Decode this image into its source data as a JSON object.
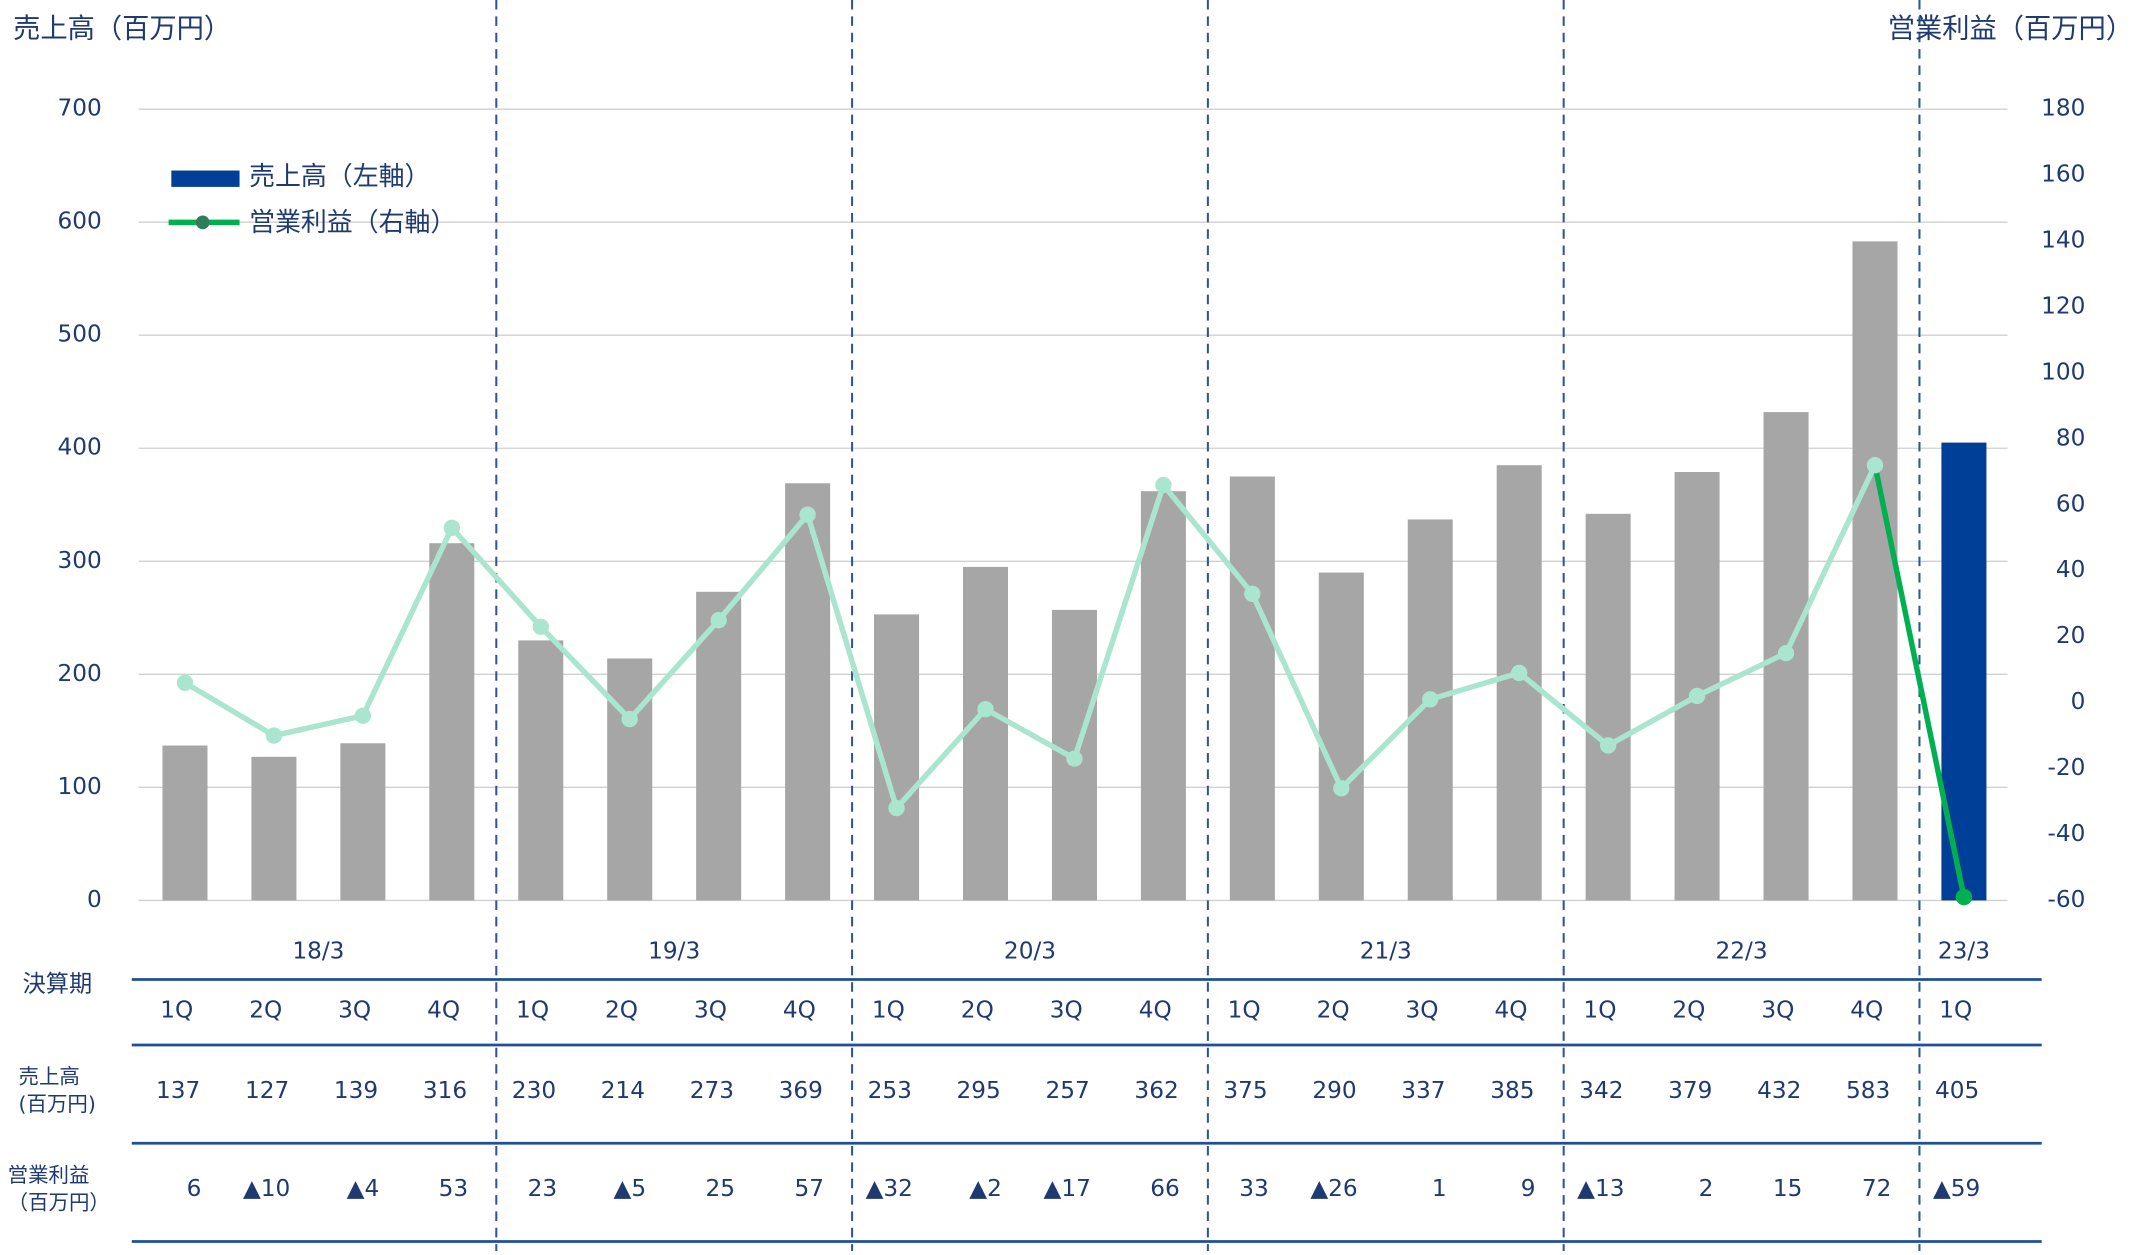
{
  "chart_data": {
    "type": "bar_line",
    "y_title": "売上高（百万円）",
    "y2_title": "営業利益（百万円）",
    "categories": [
      "1Q",
      "2Q",
      "3Q",
      "4Q",
      "1Q",
      "2Q",
      "3Q",
      "4Q",
      "1Q",
      "2Q",
      "3Q",
      "4Q",
      "1Q",
      "2Q",
      "3Q",
      "4Q",
      "1Q",
      "2Q",
      "3Q",
      "4Q",
      "1Q"
    ],
    "groups": [
      "18/3",
      "19/3",
      "20/3",
      "21/3",
      "22/3",
      "23/3"
    ],
    "group_sizes": [
      4,
      4,
      4,
      4,
      4,
      1
    ],
    "series": [
      {
        "name": "売上高（左軸）",
        "color": "#003f98",
        "muted_color": "#a6a6a6",
        "values": [
          137,
          127,
          139,
          316,
          230,
          214,
          273,
          369,
          253,
          295,
          257,
          362,
          375,
          290,
          337,
          385,
          342,
          379,
          432,
          583,
          405
        ]
      },
      {
        "name": "営業利益（右軸）",
        "color": "#00b050",
        "muted_color": "#a9e5cf",
        "axis": "y2",
        "values": [
          6,
          -10,
          -4,
          53,
          23,
          -5,
          25,
          57,
          -32,
          -2,
          -17,
          66,
          33,
          -26,
          1,
          9,
          -13,
          2,
          15,
          72,
          -59
        ],
        "value_labels": [
          "6",
          "▲10",
          "▲4",
          "53",
          "23",
          "▲5",
          "25",
          "57",
          "▲32",
          "▲2",
          "▲17",
          "66",
          "33",
          "▲26",
          "1",
          "9",
          "▲13",
          "2",
          "15",
          "72",
          "▲59"
        ]
      }
    ],
    "highlight_last": true,
    "ylim": [
      0,
      700
    ],
    "yticks": [
      0,
      100,
      200,
      300,
      400,
      500,
      600,
      700
    ],
    "y2lim": [
      -60,
      180
    ],
    "y2ticks": [
      -60,
      -40,
      -20,
      0,
      20,
      40,
      60,
      80,
      100,
      120,
      140,
      160,
      180
    ],
    "grid": true
  },
  "table": {
    "period": "決算期",
    "sales": [
      "売上高",
      "(百万円)"
    ],
    "profit": [
      "営業利益",
      "（百万円）"
    ]
  }
}
